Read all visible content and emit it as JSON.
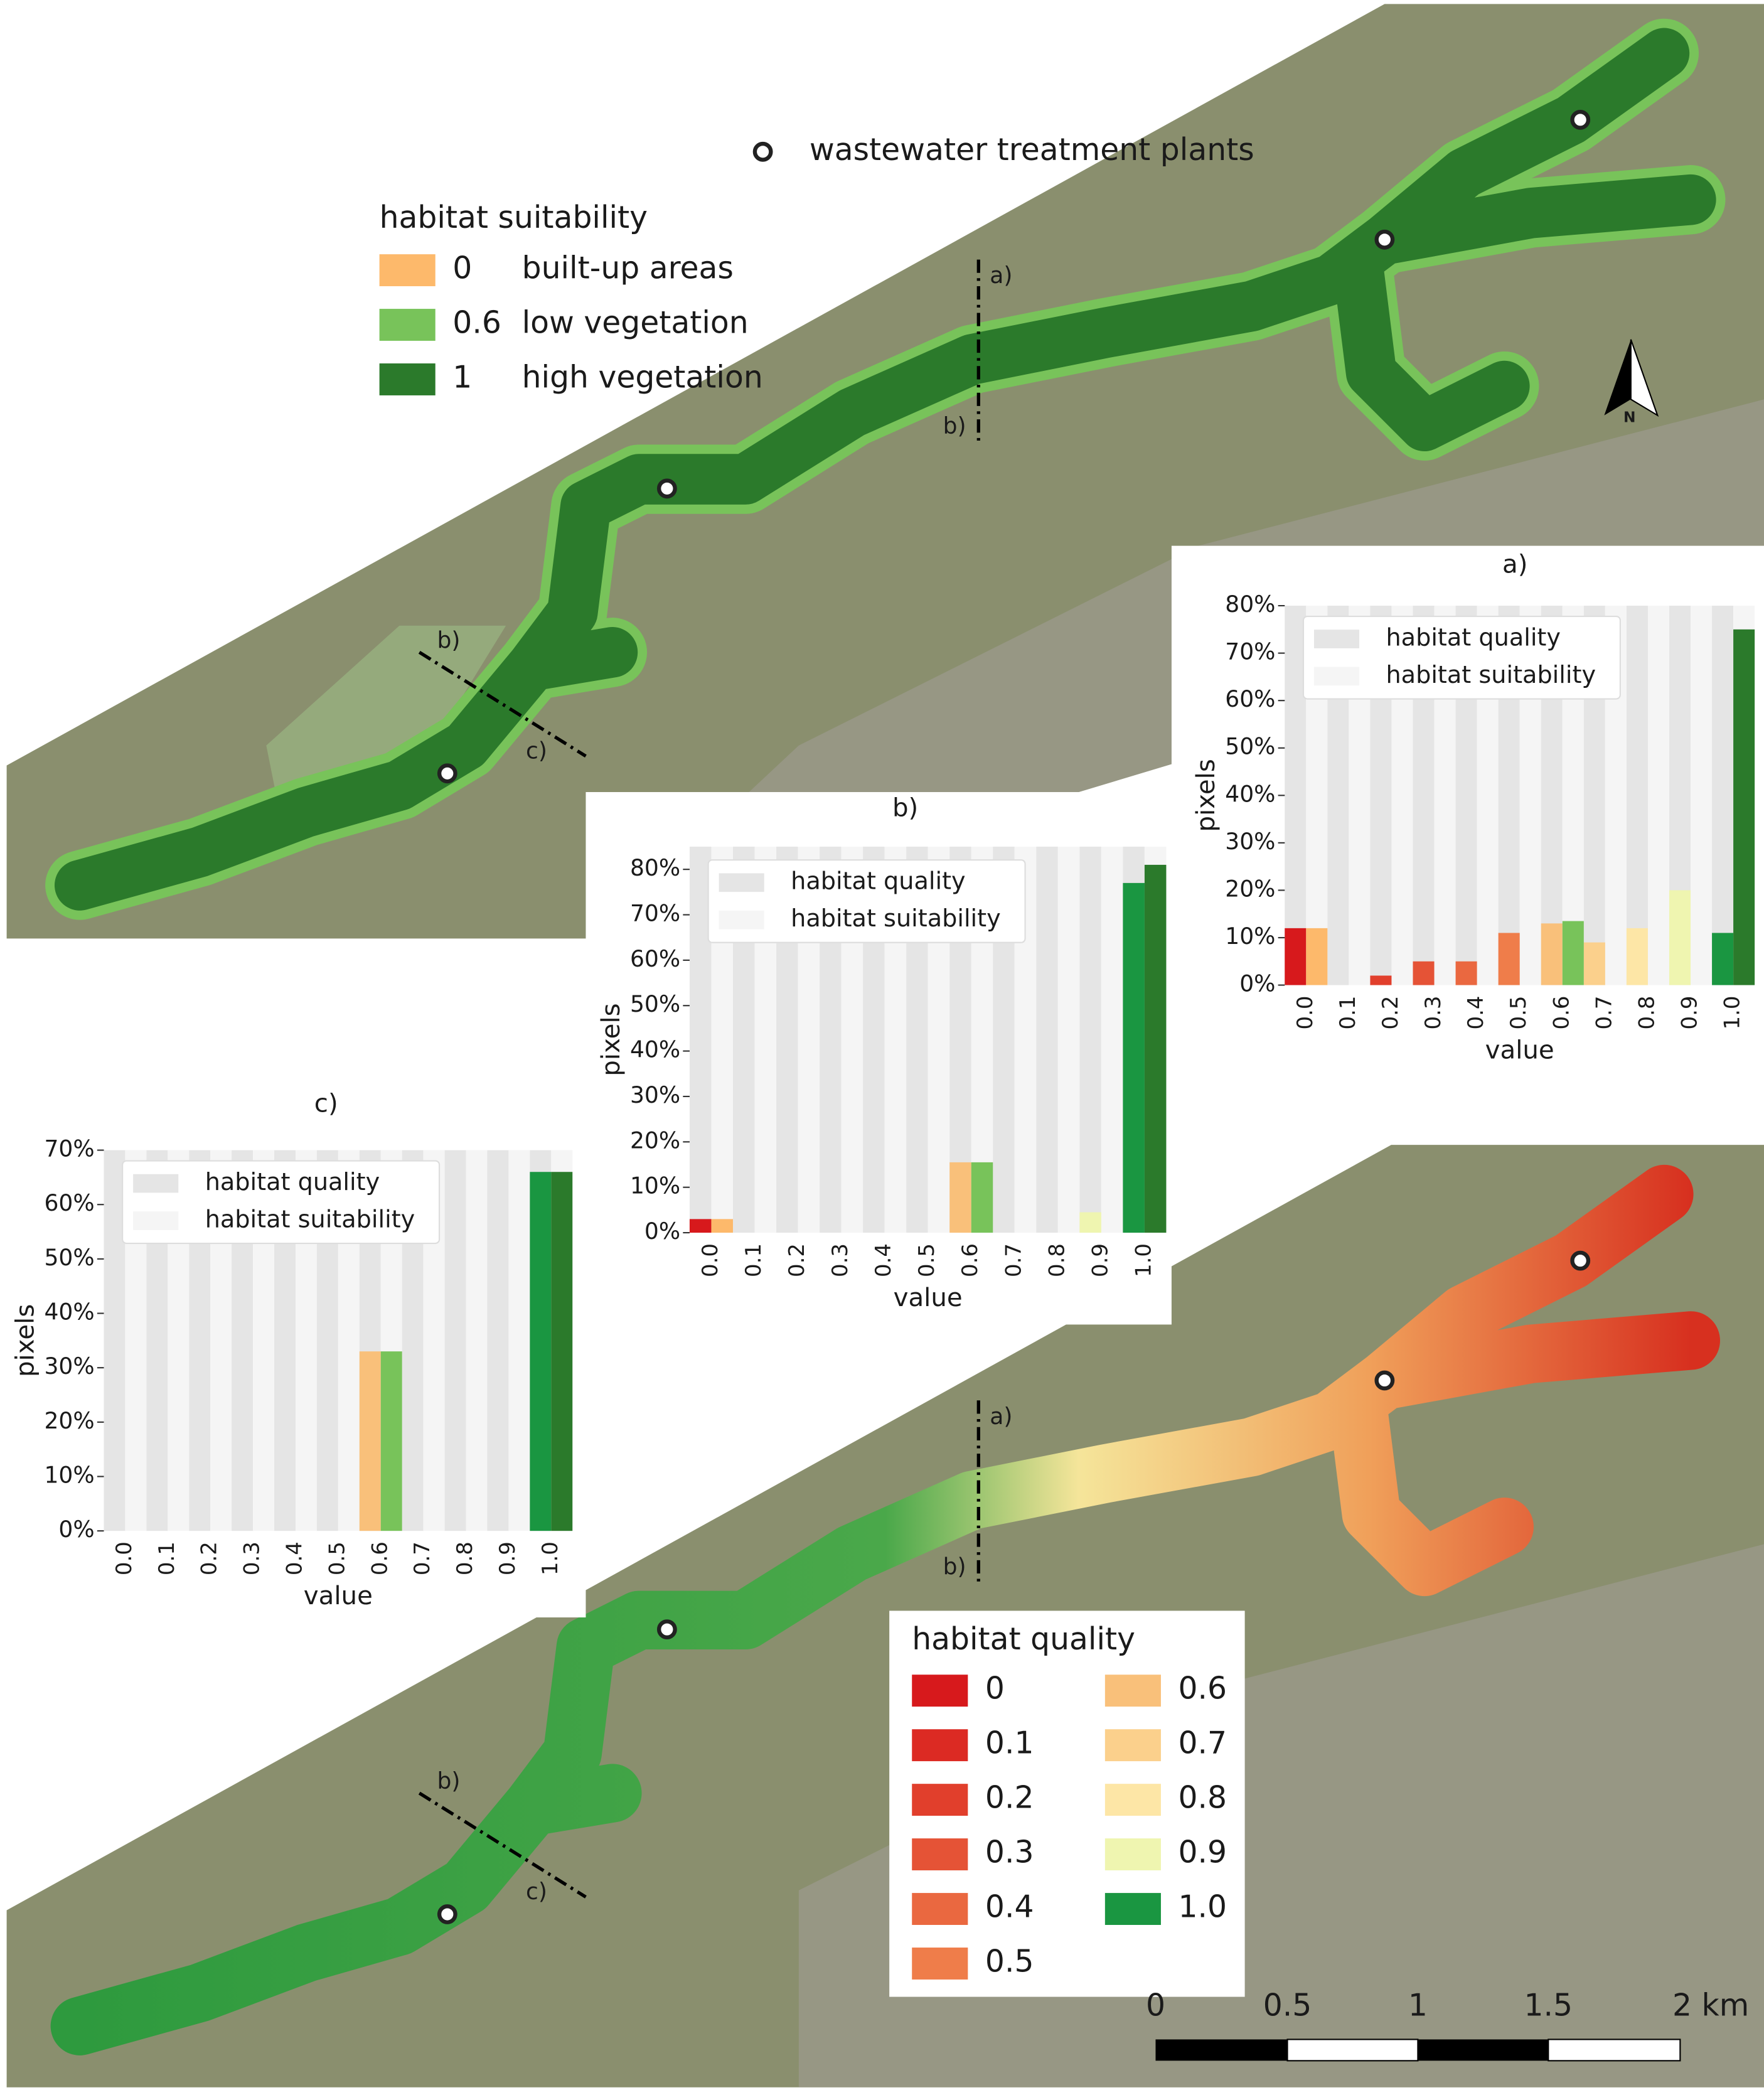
{
  "map_legend": {
    "title": "habitat suitability",
    "items": [
      {
        "value": "0",
        "label": "built-up areas",
        "color": "#fdb96b"
      },
      {
        "value": "0.6",
        "label": "low vegetation",
        "color": "#78c35a"
      },
      {
        "value": "1",
        "label": "high vegetation",
        "color": "#2b7a2b"
      }
    ]
  },
  "wwtp_label": "wastewater treatment plants",
  "section_labels": [
    "a)",
    "b)",
    "c)"
  ],
  "north": "N",
  "quality_legend": {
    "title": "habitat quality",
    "items": [
      {
        "label": "0",
        "color": "#d7191c"
      },
      {
        "label": "0.1",
        "color": "#dc2a23"
      },
      {
        "label": "0.2",
        "color": "#e13f2c"
      },
      {
        "label": "0.3",
        "color": "#e55336"
      },
      {
        "label": "0.4",
        "color": "#ea6840"
      },
      {
        "label": "0.5",
        "color": "#ef7d4a"
      },
      {
        "label": "0.6",
        "color": "#f9c07a"
      },
      {
        "label": "0.7",
        "color": "#fbd08c"
      },
      {
        "label": "0.8",
        "color": "#fde6a6"
      },
      {
        "label": "0.9",
        "color": "#eff5b0"
      },
      {
        "label": "1.0",
        "color": "#1a9641"
      }
    ]
  },
  "scale_bar": {
    "labels": [
      "0",
      "0.5",
      "1",
      "1.5",
      "2 km"
    ]
  },
  "chart_data": [
    {
      "type": "bar",
      "title": "a)",
      "x_label": "value",
      "y_label": "pixels",
      "categories": [
        "0.0",
        "0.1",
        "0.2",
        "0.3",
        "0.4",
        "0.5",
        "0.6",
        "0.7",
        "0.8",
        "0.9",
        "1.0"
      ],
      "series": [
        {
          "name": "habitat quality",
          "color": "#e5e5e5",
          "colors": [
            "#d7191c",
            "#dc2a23",
            "#e13f2c",
            "#e55336",
            "#ea6840",
            "#ef7d4a",
            "#f9c07a",
            "#fbd08c",
            "#fde6a6",
            "#eff5b0",
            "#1a9641"
          ],
          "values": [
            12,
            0,
            2,
            5,
            5,
            11,
            13,
            9,
            12,
            20,
            11
          ]
        },
        {
          "name": "habitat suitability",
          "color": "#f5f5f5",
          "colors": [
            "#fdb96b",
            "#fdb96b",
            "#fdb96b",
            "#fdb96b",
            "#fdb96b",
            "#fdb96b",
            "#78c35a",
            "#78c35a",
            "#78c35a",
            "#78c35a",
            "#2b7a2b"
          ],
          "values": [
            12,
            0,
            0,
            0,
            0,
            0,
            13.5,
            0,
            0,
            0,
            75
          ]
        }
      ],
      "ylim": [
        0,
        80
      ],
      "yticks": [
        {
          "value": 0,
          "label": "0%"
        },
        {
          "value": 10,
          "label": "10%"
        },
        {
          "value": 20,
          "label": "20%"
        },
        {
          "value": 30,
          "label": "30%"
        },
        {
          "value": 40,
          "label": "40%"
        },
        {
          "value": 50,
          "label": "50%"
        },
        {
          "value": 60,
          "label": "60%"
        },
        {
          "value": 70,
          "label": "70%"
        },
        {
          "value": 80,
          "label": "80%"
        }
      ]
    },
    {
      "type": "bar",
      "title": "b)",
      "x_label": "value",
      "y_label": "pixels",
      "categories": [
        "0.0",
        "0.1",
        "0.2",
        "0.3",
        "0.4",
        "0.5",
        "0.6",
        "0.7",
        "0.8",
        "0.9",
        "1.0"
      ],
      "series": [
        {
          "name": "habitat quality",
          "color": "#e5e5e5",
          "colors": [
            "#d7191c",
            "#dc2a23",
            "#e13f2c",
            "#e55336",
            "#ea6840",
            "#ef7d4a",
            "#f9c07a",
            "#fbd08c",
            "#fde6a6",
            "#eff5b0",
            "#1a9641"
          ],
          "values": [
            3,
            0,
            0,
            0,
            0,
            0,
            15.5,
            0,
            0,
            4.5,
            77
          ]
        },
        {
          "name": "habitat suitability",
          "color": "#f5f5f5",
          "colors": [
            "#fdb96b",
            "#fdb96b",
            "#fdb96b",
            "#fdb96b",
            "#fdb96b",
            "#fdb96b",
            "#78c35a",
            "#78c35a",
            "#78c35a",
            "#78c35a",
            "#2b7a2b"
          ],
          "values": [
            3,
            0,
            0,
            0,
            0,
            0,
            15.5,
            0,
            0,
            0,
            81
          ]
        }
      ],
      "ylim": [
        0,
        85
      ],
      "yticks": [
        {
          "value": 0,
          "label": "0%"
        },
        {
          "value": 10,
          "label": "10%"
        },
        {
          "value": 20,
          "label": "20%"
        },
        {
          "value": 30,
          "label": "30%"
        },
        {
          "value": 40,
          "label": "40%"
        },
        {
          "value": 50,
          "label": "50%"
        },
        {
          "value": 60,
          "label": "60%"
        },
        {
          "value": 70,
          "label": "70%"
        },
        {
          "value": 80,
          "label": "80%"
        }
      ]
    },
    {
      "type": "bar",
      "title": "c)",
      "x_label": "value",
      "y_label": "pixels",
      "categories": [
        "0.0",
        "0.1",
        "0.2",
        "0.3",
        "0.4",
        "0.5",
        "0.6",
        "0.7",
        "0.8",
        "0.9",
        "1.0"
      ],
      "series": [
        {
          "name": "habitat quality",
          "color": "#e5e5e5",
          "colors": [
            "#d7191c",
            "#dc2a23",
            "#e13f2c",
            "#e55336",
            "#ea6840",
            "#ef7d4a",
            "#f9c07a",
            "#fbd08c",
            "#fde6a6",
            "#eff5b0",
            "#1a9641"
          ],
          "values": [
            0,
            0,
            0,
            0,
            0,
            0,
            33,
            0,
            0,
            0,
            66
          ]
        },
        {
          "name": "habitat suitability",
          "color": "#f5f5f5",
          "colors": [
            "#fdb96b",
            "#fdb96b",
            "#fdb96b",
            "#fdb96b",
            "#fdb96b",
            "#fdb96b",
            "#78c35a",
            "#78c35a",
            "#78c35a",
            "#78c35a",
            "#2b7a2b"
          ],
          "values": [
            0,
            0,
            0,
            0,
            0,
            0,
            33,
            0,
            0,
            0,
            66
          ]
        }
      ],
      "ylim": [
        0,
        70
      ],
      "yticks": [
        {
          "value": 0,
          "label": "0%"
        },
        {
          "value": 10,
          "label": "10%"
        },
        {
          "value": 20,
          "label": "20%"
        },
        {
          "value": 30,
          "label": "30%"
        },
        {
          "value": 40,
          "label": "40%"
        },
        {
          "value": 50,
          "label": "50%"
        },
        {
          "value": 60,
          "label": "60%"
        },
        {
          "value": 70,
          "label": "70%"
        }
      ]
    }
  ]
}
